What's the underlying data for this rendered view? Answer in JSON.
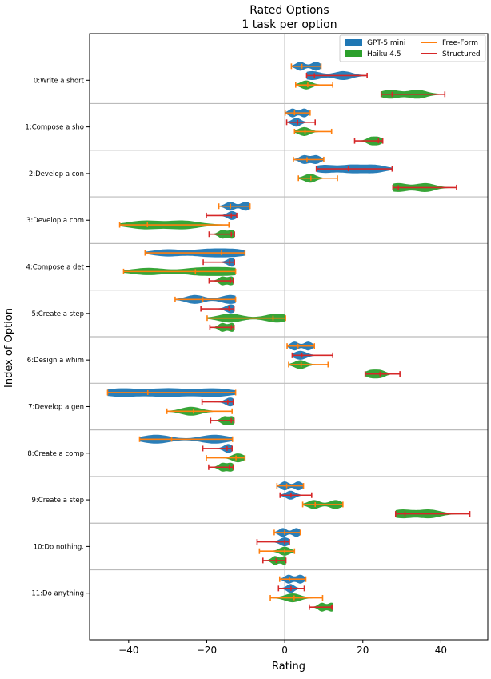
{
  "chart_data": {
    "type": "violin",
    "title": "Rated Options",
    "subtitle": "1 task per option",
    "xlabel": "Rating",
    "ylabel": "Index of Option",
    "xlim": [
      -50,
      52
    ],
    "xticks": [
      -40,
      -20,
      0,
      20,
      40
    ],
    "grid": true,
    "legend_position": "top-right",
    "categories": [
      "0:Write a short",
      "1:Compose a sho",
      "2:Develop a con",
      "3:Develop a com",
      "4:Compose a det",
      "5:Create a step",
      "6:Design a whim",
      "7:Develop a gen",
      "8:Create a comp",
      "9:Create a step",
      "10:Do nothing.",
      "11:Do anything"
    ],
    "legend": {
      "models": [
        {
          "name": "GPT-5 mini",
          "color": "#1f77b4"
        },
        {
          "name": "Haiku 4.5",
          "color": "#2ca02c"
        }
      ],
      "formats": [
        {
          "name": "Free-Form",
          "color": "#ff7f0e"
        },
        {
          "name": "Structured",
          "color": "#d62728"
        }
      ]
    },
    "series": [
      {
        "model": "GPT-5 mini",
        "format": "Free-Form",
        "fill": "#1f77b4",
        "line": "#ff7f0e",
        "data": [
          {
            "min": 1.7,
            "median": 4.4,
            "max": 9.3,
            "peaks": [
              4,
              8
            ]
          },
          {
            "min": 0.1,
            "median": 2.5,
            "max": 6.5,
            "peaks": [
              2,
              5
            ]
          },
          {
            "min": 2.2,
            "median": 5.7,
            "max": 10.0,
            "peaks": [
              5,
              8
            ]
          },
          {
            "min": -16.9,
            "median": -13.9,
            "max": -8.9,
            "peaks": [
              -14,
              -10
            ]
          },
          {
            "min": -35.8,
            "median": -16.2,
            "max": -10.2,
            "peaks": [
              -30,
              -20,
              -13
            ]
          },
          {
            "min": -28.1,
            "median": -21.0,
            "max": -12.6,
            "peaks": [
              -23,
              -14
            ]
          },
          {
            "min": 0.6,
            "median": 3.4,
            "max": 7.6,
            "peaks": [
              2.5,
              6
            ]
          },
          {
            "min": -45.4,
            "median": -35.1,
            "max": -12.6,
            "peaks": [
              -42,
              -30,
              -18
            ]
          },
          {
            "min": -37.2,
            "median": -29.0,
            "max": -13.4,
            "peaks": [
              -33,
              -18
            ]
          },
          {
            "min": -2.0,
            "median": 0.5,
            "max": 4.8,
            "peaks": [
              0,
              3.5
            ]
          },
          {
            "min": -2.7,
            "median": 0.0,
            "max": 4.0,
            "peaks": [
              -0.5,
              3
            ]
          },
          {
            "min": -1.3,
            "median": 1.2,
            "max": 5.4,
            "peaks": [
              1,
              4
            ]
          }
        ]
      },
      {
        "model": "GPT-5 mini",
        "format": "Structured",
        "fill": "#1f77b4",
        "line": "#d62728",
        "data": [
          {
            "min": 5.6,
            "median": 7.6,
            "max": 21.1,
            "peaks": [
              7,
              15
            ]
          },
          {
            "min": 0.5,
            "median": 3.3,
            "max": 7.8,
            "peaks": [
              3
            ]
          },
          {
            "min": 8.1,
            "median": 16.3,
            "max": 27.5,
            "peaks": [
              10,
              17,
              23
            ]
          },
          {
            "min": -20.1,
            "median": -13.7,
            "max": -12.3,
            "peaks": [
              -13.5
            ]
          },
          {
            "min": -20.9,
            "median": -14.1,
            "max": -12.9,
            "peaks": [
              -13.5
            ]
          },
          {
            "min": -21.5,
            "median": -14.3,
            "max": -13.0,
            "peaks": [
              -13.8
            ]
          },
          {
            "min": 1.9,
            "median": 4.4,
            "max": 12.3,
            "peaks": [
              4
            ]
          },
          {
            "min": -21.2,
            "median": -14.6,
            "max": -13.2,
            "peaks": [
              -14
            ]
          },
          {
            "min": -21.0,
            "median": -14.8,
            "max": -13.5,
            "peaks": [
              -14.5
            ]
          },
          {
            "min": -1.2,
            "median": 1.6,
            "max": 6.9,
            "peaks": [
              1.5
            ]
          },
          {
            "min": -7.1,
            "median": 0.0,
            "max": 1.2,
            "peaks": [
              0
            ]
          },
          {
            "min": -1.6,
            "median": 1.6,
            "max": 5.0,
            "peaks": [
              1.5
            ]
          }
        ]
      },
      {
        "model": "Haiku 4.5",
        "format": "Free-Form",
        "fill": "#2ca02c",
        "line": "#ff7f0e",
        "data": [
          {
            "min": 2.8,
            "median": 5.9,
            "max": 12.3,
            "peaks": [
              5.5
            ]
          },
          {
            "min": 2.5,
            "median": 5.2,
            "max": 12.0,
            "peaks": [
              5
            ]
          },
          {
            "min": 3.5,
            "median": 6.7,
            "max": 13.5,
            "peaks": [
              6.5
            ]
          },
          {
            "min": -42.3,
            "median": -35.2,
            "max": -14.3,
            "peaks": [
              -36,
              -26
            ]
          },
          {
            "min": -41.3,
            "median": -22.9,
            "max": -12.6,
            "peaks": [
              -35,
              -22,
              -14
            ]
          },
          {
            "min": -19.9,
            "median": -3.0,
            "max": 0.2,
            "peaks": [
              -14,
              -2
            ]
          },
          {
            "min": 1.0,
            "median": 4.2,
            "max": 11.1,
            "peaks": [
              4
            ]
          },
          {
            "min": -30.2,
            "median": -23.4,
            "max": -13.5,
            "peaks": [
              -24
            ]
          },
          {
            "min": -20.1,
            "median": -12.5,
            "max": -10.2,
            "peaks": [
              -12
            ]
          },
          {
            "min": 4.6,
            "median": 7.8,
            "max": 14.9,
            "peaks": [
              7.5,
              13
            ]
          },
          {
            "min": -6.5,
            "median": 0.0,
            "max": 2.5,
            "peaks": [
              0
            ]
          },
          {
            "min": -3.7,
            "median": 2.4,
            "max": 9.7,
            "peaks": [
              2
            ]
          }
        ]
      },
      {
        "model": "Haiku 4.5",
        "format": "Structured",
        "fill": "#2ca02c",
        "line": "#d62728",
        "data": [
          {
            "min": 24.7,
            "median": 27.5,
            "max": 41.0,
            "peaks": [
              27,
              34
            ]
          },
          {
            "min": 17.9,
            "median": 24.0,
            "max": 25.1,
            "peaks": [
              22,
              24
            ]
          },
          {
            "min": 27.7,
            "median": 29.1,
            "max": 44.0,
            "peaks": [
              29,
              36
            ]
          },
          {
            "min": -19.4,
            "median": -13.7,
            "max": -12.9,
            "peaks": [
              -16,
              -13.5
            ]
          },
          {
            "min": -19.4,
            "median": -13.9,
            "max": -13.2,
            "peaks": [
              -16,
              -13.7
            ]
          },
          {
            "min": -19.2,
            "median": -13.7,
            "max": -13.0,
            "peaks": [
              -16,
              -13.5
            ]
          },
          {
            "min": 20.6,
            "median": 24.4,
            "max": 29.5,
            "peaks": [
              22,
              24.5
            ]
          },
          {
            "min": -19.0,
            "median": -13.7,
            "max": -13.0,
            "peaks": [
              -15.5,
              -13.5
            ]
          },
          {
            "min": -19.5,
            "median": -14.2,
            "max": -13.2,
            "peaks": [
              -16,
              -13.8
            ]
          },
          {
            "min": 28.4,
            "median": 30.8,
            "max": 47.4,
            "peaks": [
              30,
              37
            ]
          },
          {
            "min": -5.6,
            "median": -2.2,
            "max": 0.3,
            "peaks": [
              -2.5,
              0
            ]
          },
          {
            "min": 6.3,
            "median": 12.0,
            "max": 12.3,
            "peaks": [
              9.5,
              12
            ]
          }
        ]
      }
    ]
  }
}
